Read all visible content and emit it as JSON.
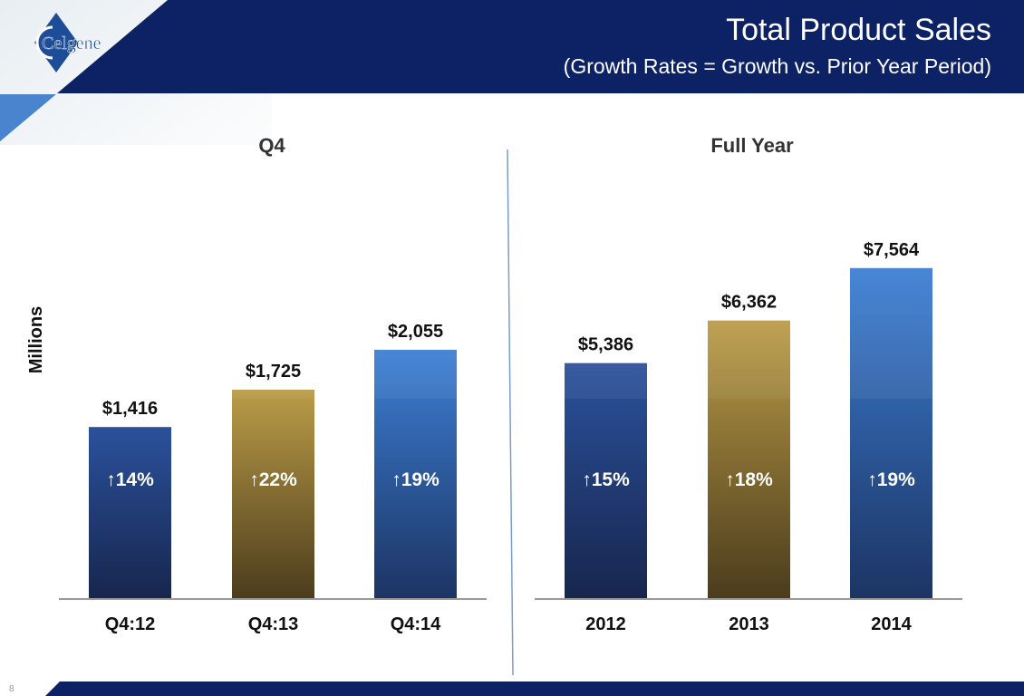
{
  "header": {
    "title": "Total Product Sales",
    "subtitle": "(Growth Rates = Growth vs. Prior Year Period)",
    "logo_text": "Celgene"
  },
  "page_number": "8",
  "colors": {
    "navy": "#0c2265",
    "bar_navy": [
      "#2b519c",
      "#17264d"
    ],
    "bar_gold": [
      "#bb9c48",
      "#4b3c1c"
    ],
    "bar_blue": [
      "#3d7fd4",
      "#1c3463"
    ]
  },
  "chart_data": [
    {
      "type": "bar",
      "title": "Q4",
      "ylabel": "Millions",
      "categories": [
        "Q4:12",
        "Q4:13",
        "Q4:14"
      ],
      "values": [
        1416,
        1725,
        2055
      ],
      "data_labels": [
        "$1,416",
        "$1,725",
        "$2,055"
      ],
      "growth_labels": [
        "↑14%",
        "↑22%",
        "↑19%"
      ],
      "colors": [
        "navy",
        "gold",
        "blue"
      ],
      "ylim": [
        0,
        3900
      ]
    },
    {
      "type": "bar",
      "title": "Full Year",
      "categories": [
        "2012",
        "2013",
        "2014"
      ],
      "values": [
        5386,
        6362,
        7564
      ],
      "data_labels": [
        "$5,386",
        "$6,362",
        "$7,564"
      ],
      "growth_labels": [
        "↑15%",
        "↑18%",
        "↑19%"
      ],
      "colors": [
        "navy",
        "gold",
        "blue"
      ],
      "ylim": [
        0,
        10800
      ]
    }
  ]
}
